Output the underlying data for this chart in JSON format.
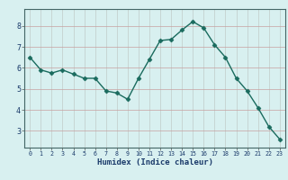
{
  "x": [
    0,
    1,
    2,
    3,
    4,
    5,
    6,
    7,
    8,
    9,
    10,
    11,
    12,
    13,
    14,
    15,
    16,
    17,
    18,
    19,
    20,
    21,
    22,
    23
  ],
  "y": [
    6.5,
    5.9,
    5.75,
    5.9,
    5.7,
    5.5,
    5.5,
    4.9,
    4.8,
    4.5,
    5.5,
    6.4,
    7.3,
    7.35,
    7.8,
    8.2,
    7.9,
    7.1,
    6.5,
    5.5,
    4.9,
    4.1,
    3.2,
    2.6
  ],
  "xlabel": "Humidex (Indice chaleur)",
  "ylim": [
    2.2,
    8.8
  ],
  "xlim": [
    -0.5,
    23.5
  ],
  "yticks": [
    3,
    4,
    5,
    6,
    7,
    8
  ],
  "xtick_labels": [
    "0",
    "1",
    "2",
    "3",
    "4",
    "5",
    "6",
    "7",
    "8",
    "9",
    "10",
    "11",
    "12",
    "13",
    "14",
    "15",
    "16",
    "17",
    "18",
    "19",
    "20",
    "21",
    "22",
    "23"
  ],
  "line_color": "#1a6b5e",
  "marker": "D",
  "marker_size": 2.5,
  "bg_color": "#d8f0f0",
  "grid_color_h": "#c8a0a0",
  "grid_color_v": "#c0ccc8"
}
